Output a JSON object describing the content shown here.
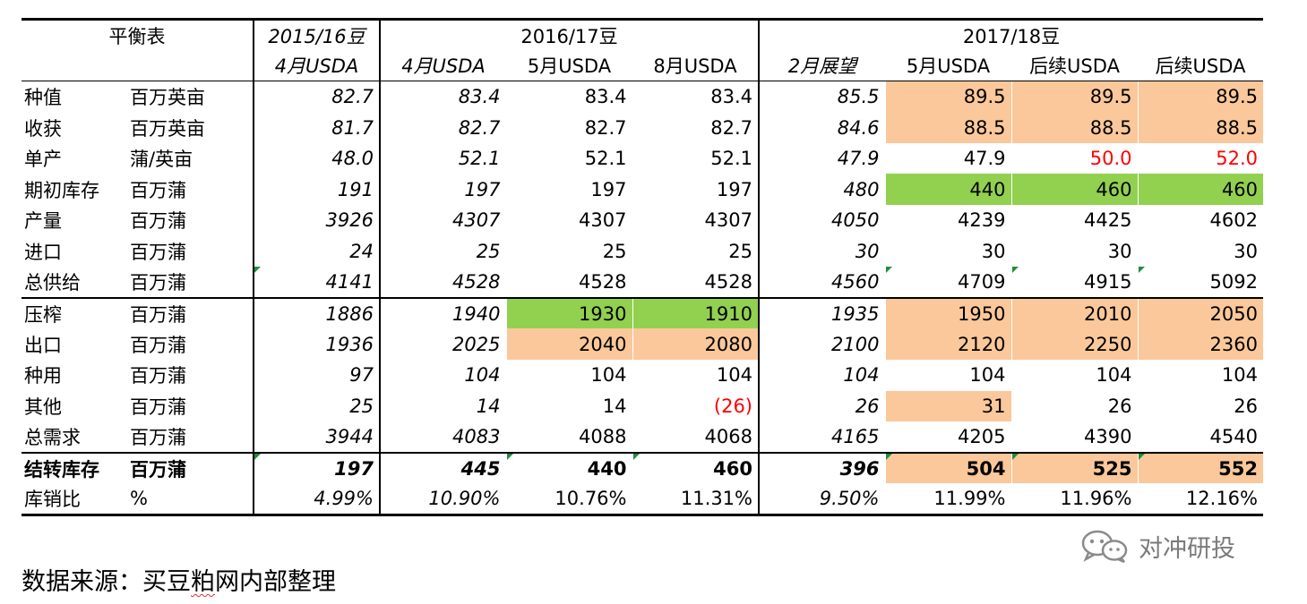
{
  "table": {
    "header": {
      "row_label": "平衡表",
      "group_2015": "2015/16豆",
      "group_2016": "2016/17豆",
      "group_2017": "2017/18豆",
      "sub_columns": [
        "4月USDA",
        "4月USDA",
        "5月USDA",
        "8月USDA",
        "2月展望",
        "5月USDA",
        "后续USDA",
        "后续USDA"
      ]
    },
    "rows": [
      {
        "item": "种值",
        "unit": "百万英亩",
        "values": [
          "82.7",
          "83.4",
          "83.4",
          "83.4",
          "85.5",
          "89.5",
          "89.5",
          "89.5"
        ]
      },
      {
        "item": "收获",
        "unit": "百万英亩",
        "values": [
          "81.7",
          "82.7",
          "82.7",
          "82.7",
          "84.6",
          "88.5",
          "88.5",
          "88.5"
        ]
      },
      {
        "item": "单产",
        "unit": "蒲/英亩",
        "values": [
          "48.0",
          "52.1",
          "52.1",
          "52.1",
          "47.9",
          "47.9",
          "50.0",
          "52.0"
        ]
      },
      {
        "item": "期初库存",
        "unit": "百万蒲",
        "values": [
          "191",
          "197",
          "197",
          "197",
          "480",
          "440",
          "460",
          "460"
        ]
      },
      {
        "item": "产量",
        "unit": "百万蒲",
        "values": [
          "3926",
          "4307",
          "4307",
          "4307",
          "4050",
          "4239",
          "4425",
          "4602"
        ]
      },
      {
        "item": "进口",
        "unit": "百万蒲",
        "values": [
          "24",
          "25",
          "25",
          "25",
          "30",
          "30",
          "30",
          "30"
        ]
      },
      {
        "item": "总供给",
        "unit": "百万蒲",
        "values": [
          "4141",
          "4528",
          "4528",
          "4528",
          "4560",
          "4709",
          "4915",
          "5092"
        ]
      },
      {
        "item": "压榨",
        "unit": "百万蒲",
        "values": [
          "1886",
          "1940",
          "1930",
          "1910",
          "1935",
          "1950",
          "2010",
          "2050"
        ]
      },
      {
        "item": "出口",
        "unit": "百万蒲",
        "values": [
          "1936",
          "2025",
          "2040",
          "2080",
          "2100",
          "2120",
          "2250",
          "2360"
        ]
      },
      {
        "item": "种用",
        "unit": "百万蒲",
        "values": [
          "97",
          "104",
          "104",
          "104",
          "104",
          "104",
          "104",
          "104"
        ]
      },
      {
        "item": "其他",
        "unit": "百万蒲",
        "values": [
          "25",
          "14",
          "14",
          "(26)",
          "26",
          "31",
          "26",
          "26"
        ]
      },
      {
        "item": "总需求",
        "unit": "百万蒲",
        "values": [
          "3944",
          "4083",
          "4088",
          "4068",
          "4165",
          "4205",
          "4390",
          "4540"
        ]
      },
      {
        "item": "结转库存",
        "unit": "百万蒲",
        "values": [
          "197",
          "445",
          "440",
          "460",
          "396",
          "504",
          "525",
          "552"
        ]
      },
      {
        "item": "库销比",
        "unit": "%",
        "values": [
          "4.99%",
          "10.90%",
          "10.76%",
          "11.31%",
          "9.50%",
          "11.99%",
          "11.96%",
          "12.16%"
        ]
      }
    ],
    "highlight_colors": {
      "tan": "#fac89a",
      "green": "#92d050",
      "red_text": "#ff0000"
    }
  },
  "watermark": {
    "icon": "wechat-icon",
    "text": "对冲研投"
  },
  "source": {
    "prefix": "数据来源：买豆",
    "emph": "粕",
    "suffix": "网内部整理"
  }
}
